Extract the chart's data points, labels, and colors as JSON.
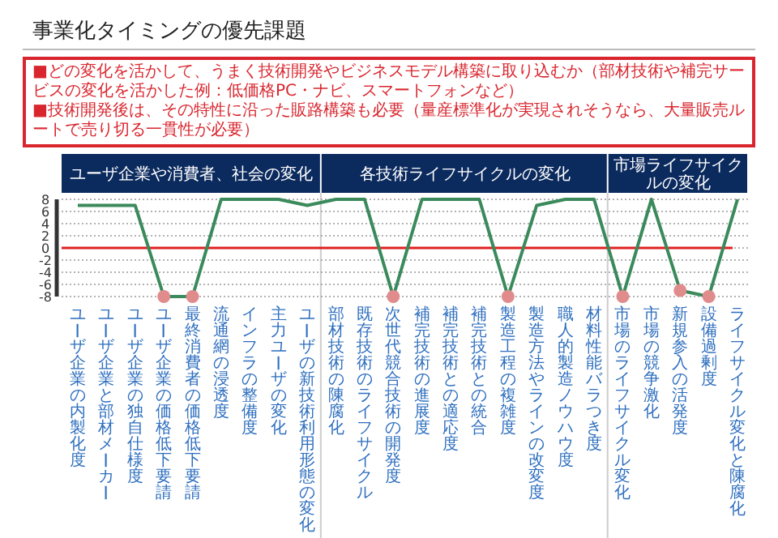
{
  "chart_data": {
    "type": "line",
    "title": "事業化タイミングの優先課題",
    "annotations": [
      "■どの変化を活かして、うまく技術開発やビジネスモデル構築に取り込むか（部材技術や補完サービスの変化を活かした例：低価格PC・ナビ、スマートフォンなど）",
      "■技術開発後は、その特性に沿った販路構築も必要（量産標準化が実現されそうなら、大量販売ルートで売り切る一貫性が必要）",
      "ユーザ企業や消費者、社会の変化",
      "各技術ライフサイクルの変化",
      "市場ライフサイクルの変化"
    ],
    "categories": [
      "ユーザ企業の内製化度",
      "ユーザ企業と部材メーカー",
      "ユーザ企業の独自仕様度",
      "ユーザ企業の価格低下要請",
      "最終消費者の価格低下要請",
      "流通網の浸透度",
      "インフラの整備度",
      "主力ユーザの変化",
      "ユーザの新技術利用形態の変化",
      "部材技術の陳腐化",
      "既存技術のライフサイクル",
      "次世代競合技術の開発度",
      "補完技術の進展度",
      "補完技術との適応度",
      "補完技術との統合",
      "製造工程の複雑度",
      "製造方法やラインの改変度",
      "職人的製造ノウハウ度",
      "材料性能バラつき度",
      "市場のライフサイクル変化",
      "市場の競争激化",
      "新規参入の活発度",
      "設備過剰度",
      "ライフサイクル変化と陳腐化"
    ],
    "series": [
      {
        "color": "#3a8a5c",
        "values": [
          7,
          7,
          7,
          -8,
          -8,
          8,
          8,
          8,
          7,
          8,
          8,
          -8,
          8,
          8,
          8,
          -8,
          7,
          8,
          8,
          -8,
          8,
          -7,
          -8,
          8
        ]
      },
      {
        "type": "scatter",
        "marker": "circle",
        "color": "#e08c8c",
        "values": [
          null,
          null,
          null,
          -8,
          -8,
          null,
          null,
          null,
          null,
          null,
          null,
          -8,
          null,
          null,
          null,
          -8,
          null,
          null,
          null,
          -8,
          null,
          -7,
          -8,
          null
        ]
      }
    ],
    "ylim": [
      -8,
      8
    ],
    "yticks": [
      8,
      6,
      4,
      2,
      0,
      -2,
      -4,
      -6,
      -8
    ],
    "grid": "y",
    "ref_lines": [
      {
        "axis": "y",
        "value": 0,
        "color": "#e02020"
      }
    ]
  }
}
